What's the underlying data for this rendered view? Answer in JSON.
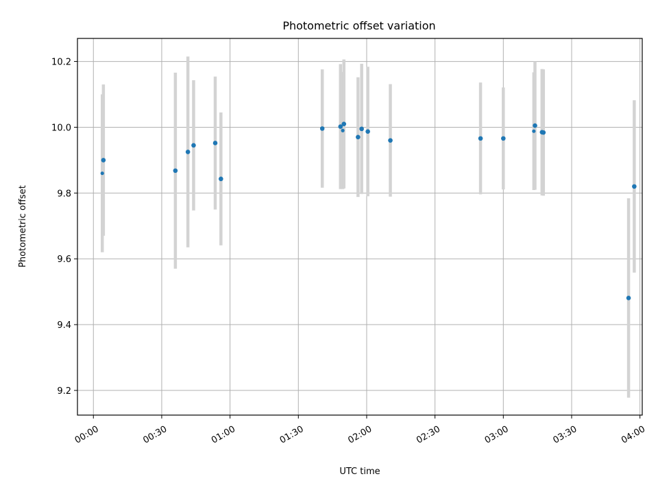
{
  "chart_data": {
    "type": "scatter",
    "title": "Photometric offset variation",
    "xlabel": "UTC time",
    "ylabel": "Photometric offset",
    "x_unit": "minutes",
    "xlim": [
      -7,
      241
    ],
    "ylim": [
      9.125,
      10.27
    ],
    "x_ticks": [
      {
        "value": 0,
        "label": "00:00"
      },
      {
        "value": 30,
        "label": "00:30"
      },
      {
        "value": 60,
        "label": "01:00"
      },
      {
        "value": 90,
        "label": "01:30"
      },
      {
        "value": 120,
        "label": "02:00"
      },
      {
        "value": 150,
        "label": "02:30"
      },
      {
        "value": 180,
        "label": "03:00"
      },
      {
        "value": 210,
        "label": "03:30"
      },
      {
        "value": 240,
        "label": "04:00"
      }
    ],
    "y_ticks": [
      {
        "value": 9.2,
        "label": "9.2"
      },
      {
        "value": 9.4,
        "label": "9.4"
      },
      {
        "value": 9.6,
        "label": "9.6"
      },
      {
        "value": 9.8,
        "label": "9.8"
      },
      {
        "value": 10.0,
        "label": "10.0"
      },
      {
        "value": 10.2,
        "label": "10.2"
      }
    ],
    "grid": true,
    "colors": {
      "point": "#1f77b4",
      "errorbar": "#d3d3d3"
    },
    "points": [
      {
        "x": 3.9,
        "y": 9.86,
        "err": 0.24,
        "size": "small"
      },
      {
        "x": 4.4,
        "y": 9.9,
        "err": 0.23,
        "size": "normal"
      },
      {
        "x": 36.0,
        "y": 9.868,
        "err": 0.298,
        "size": "normal"
      },
      {
        "x": 41.5,
        "y": 9.925,
        "err": 0.29,
        "size": "normal"
      },
      {
        "x": 44.0,
        "y": 9.945,
        "err": 0.198,
        "size": "normal"
      },
      {
        "x": 53.5,
        "y": 9.952,
        "err": 0.202,
        "size": "normal"
      },
      {
        "x": 56.0,
        "y": 9.843,
        "err": 0.202,
        "size": "normal"
      },
      {
        "x": 100.5,
        "y": 9.996,
        "err": 0.18,
        "size": "normal"
      },
      {
        "x": 108.5,
        "y": 10.002,
        "err": 0.19,
        "size": "normal"
      },
      {
        "x": 109.5,
        "y": 9.99,
        "err": 0.178,
        "size": "small"
      },
      {
        "x": 110.0,
        "y": 10.01,
        "err": 0.196,
        "size": "normal"
      },
      {
        "x": 116.2,
        "y": 9.97,
        "err": 0.182,
        "size": "normal"
      },
      {
        "x": 117.8,
        "y": 9.995,
        "err": 0.198,
        "size": "normal"
      },
      {
        "x": 120.5,
        "y": 9.987,
        "err": 0.197,
        "size": "normal"
      },
      {
        "x": 130.4,
        "y": 9.96,
        "err": 0.171,
        "size": "normal"
      },
      {
        "x": 170.0,
        "y": 9.966,
        "err": 0.17,
        "size": "normal"
      },
      {
        "x": 180.0,
        "y": 9.966,
        "err": 0.155,
        "size": "normal"
      },
      {
        "x": 193.4,
        "y": 9.988,
        "err": 0.179,
        "size": "small"
      },
      {
        "x": 193.9,
        "y": 10.005,
        "err": 0.195,
        "size": "normal"
      },
      {
        "x": 197.0,
        "y": 9.985,
        "err": 0.192,
        "size": "normal"
      },
      {
        "x": 197.6,
        "y": 9.984,
        "err": 0.192,
        "size": "normal"
      },
      {
        "x": 235.0,
        "y": 9.481,
        "err": 0.303,
        "size": "normal"
      },
      {
        "x": 237.5,
        "y": 9.82,
        "err": 0.262,
        "size": "normal"
      }
    ]
  }
}
